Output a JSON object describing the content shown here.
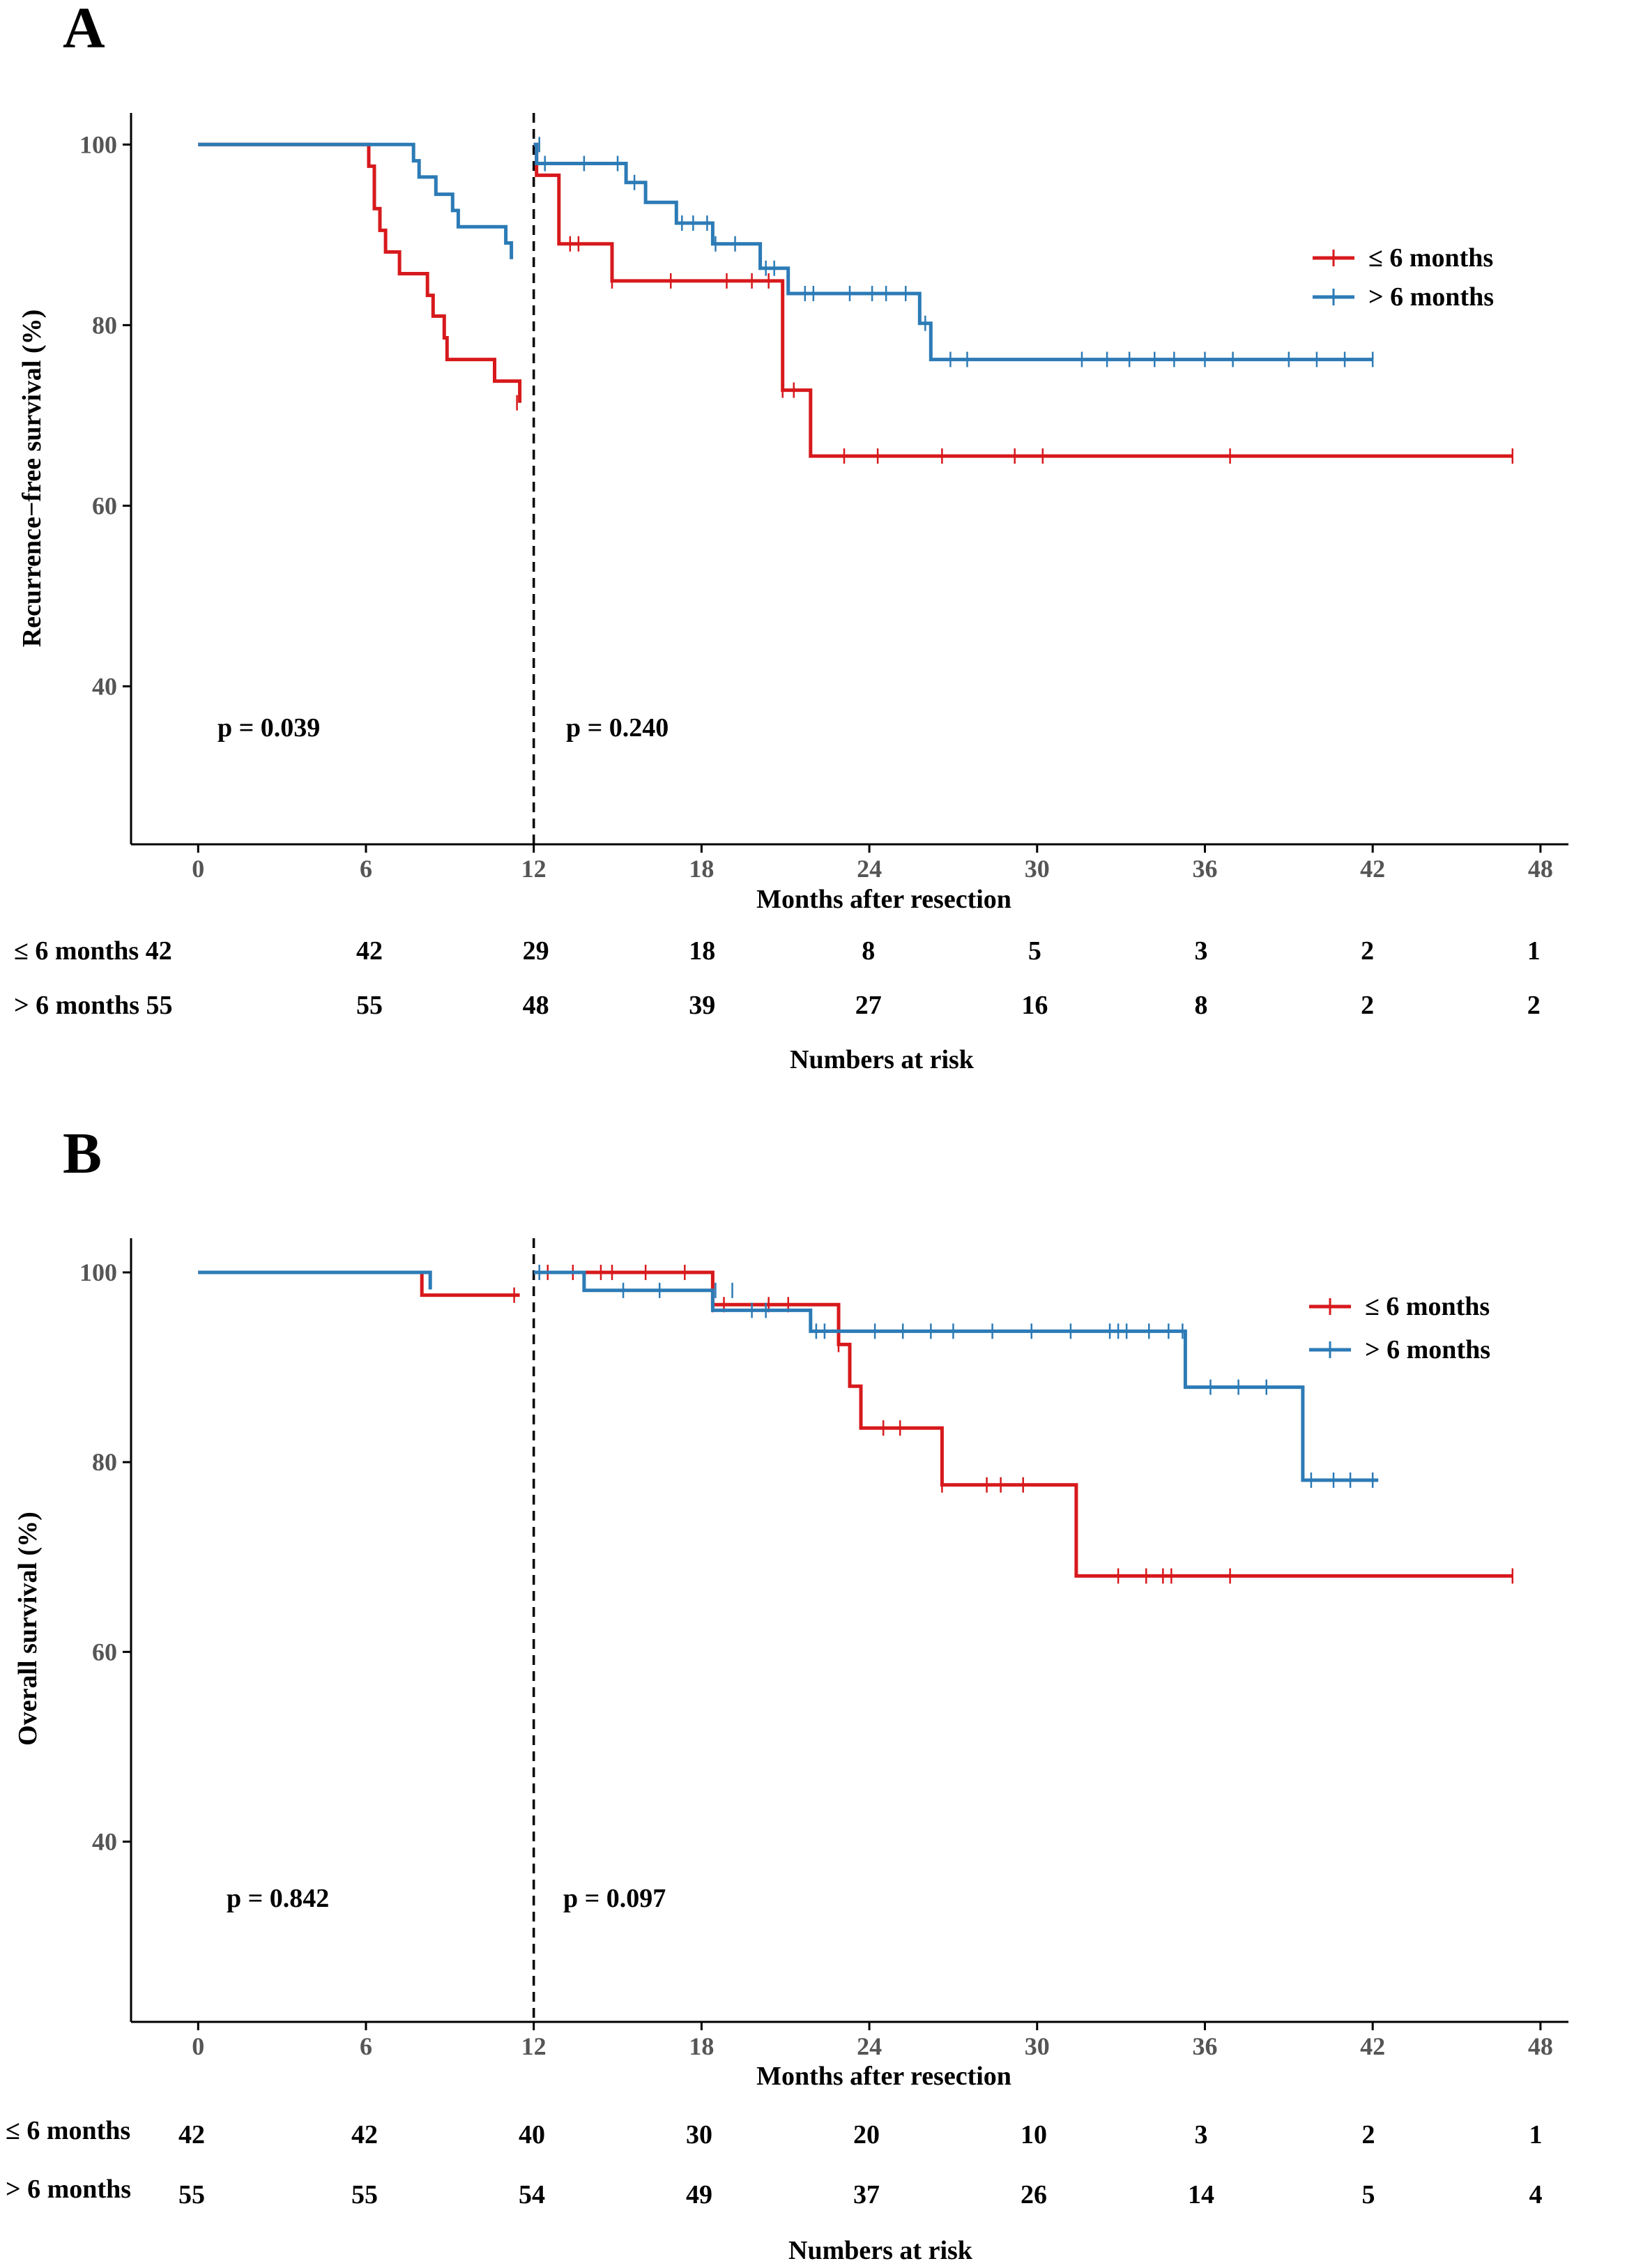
{
  "colors": {
    "le6": "#D7191C",
    "gt6": "#2C7BB6",
    "axis": "#000000"
  },
  "chart_data": [
    {
      "type": "line",
      "panel": "A",
      "xlabel": "Months after resection",
      "ylabel": "Recurrence−free survival (%)",
      "xticks": [
        0,
        6,
        12,
        18,
        24,
        30,
        36,
        42,
        48
      ],
      "yticks": [
        40,
        60,
        80,
        100
      ],
      "xlim": [
        -2.4,
        49
      ],
      "ylim": [
        22.5,
        103.5
      ],
      "landmark_x": 12,
      "p_values": [
        "p = 0.039",
        "p = 0.240"
      ],
      "series": [
        {
          "name": "≤ 6 months",
          "color_key": "le6",
          "segments": [
            [
              [
                0,
                100
              ],
              [
                6.1,
                100
              ],
              [
                6.1,
                97.6
              ],
              [
                6.3,
                97.6
              ],
              [
                6.3,
                92.9
              ],
              [
                6.5,
                92.9
              ],
              [
                6.5,
                90.5
              ],
              [
                6.7,
                90.5
              ],
              [
                6.7,
                88.1
              ],
              [
                7.2,
                88.1
              ],
              [
                7.2,
                85.7
              ],
              [
                8.2,
                85.7
              ],
              [
                8.2,
                83.3
              ],
              [
                8.4,
                83.3
              ],
              [
                8.4,
                81.0
              ],
              [
                8.8,
                81.0
              ],
              [
                8.8,
                78.6
              ],
              [
                8.9,
                78.6
              ],
              [
                8.9,
                76.2
              ],
              [
                10.6,
                76.2
              ],
              [
                10.6,
                73.8
              ],
              [
                11.5,
                73.8
              ],
              [
                11.5,
                71.4
              ]
            ],
            [
              [
                12,
                100
              ],
              [
                12.1,
                100
              ],
              [
                12.1,
                96.6
              ],
              [
                12.9,
                96.6
              ],
              [
                12.9,
                89.0
              ],
              [
                14.8,
                89.0
              ],
              [
                14.8,
                84.9
              ],
              [
                20.9,
                84.9
              ],
              [
                20.9,
                72.8
              ],
              [
                21.9,
                72.8
              ],
              [
                21.9,
                65.5
              ],
              [
                47,
                65.5
              ]
            ]
          ],
          "censor": [
            [
              11.4,
              71.4
            ],
            [
              13.3,
              89.0
            ],
            [
              13.6,
              89.0
            ],
            [
              14.8,
              84.9
            ],
            [
              16.9,
              84.9
            ],
            [
              18.9,
              84.9
            ],
            [
              19.8,
              84.9
            ],
            [
              20.4,
              84.9
            ],
            [
              20.9,
              72.8
            ],
            [
              21.3,
              72.8
            ],
            [
              23.1,
              65.5
            ],
            [
              24.3,
              65.5
            ],
            [
              26.6,
              65.5
            ],
            [
              29.2,
              65.5
            ],
            [
              30.2,
              65.5
            ],
            [
              36.9,
              65.5
            ],
            [
              47,
              65.5
            ]
          ]
        },
        {
          "name": "> 6 months",
          "color_key": "gt6",
          "segments": [
            [
              [
                0,
                100
              ],
              [
                7.7,
                100
              ],
              [
                7.7,
                98.2
              ],
              [
                7.9,
                98.2
              ],
              [
                7.9,
                96.4
              ],
              [
                8.5,
                96.4
              ],
              [
                8.5,
                94.5
              ],
              [
                9.1,
                94.5
              ],
              [
                9.1,
                92.7
              ],
              [
                9.3,
                92.7
              ],
              [
                9.3,
                90.9
              ],
              [
                11.0,
                90.9
              ],
              [
                11.0,
                89.1
              ],
              [
                11.2,
                89.1
              ],
              [
                11.2,
                87.3
              ]
            ],
            [
              [
                12,
                100
              ],
              [
                12.1,
                100
              ],
              [
                12.1,
                97.9
              ],
              [
                15.3,
                97.9
              ],
              [
                15.3,
                95.8
              ],
              [
                16.0,
                95.8
              ],
              [
                16.0,
                93.6
              ],
              [
                17.1,
                93.6
              ],
              [
                17.1,
                91.3
              ],
              [
                18.4,
                91.3
              ],
              [
                18.4,
                89.0
              ],
              [
                20.1,
                89.0
              ],
              [
                20.1,
                86.3
              ],
              [
                21.1,
                86.3
              ],
              [
                21.1,
                83.5
              ],
              [
                25.8,
                83.5
              ],
              [
                25.8,
                80.2
              ],
              [
                26.2,
                80.2
              ],
              [
                26.2,
                76.2
              ],
              [
                42,
                76.2
              ]
            ]
          ],
          "censor": [
            [
              12.2,
              100
            ],
            [
              12.4,
              97.9
            ],
            [
              13.8,
              97.9
            ],
            [
              15.0,
              97.9
            ],
            [
              15.6,
              95.8
            ],
            [
              17.3,
              91.3
            ],
            [
              17.7,
              91.3
            ],
            [
              18.2,
              91.3
            ],
            [
              18.5,
              89.0
            ],
            [
              19.2,
              89.0
            ],
            [
              20.3,
              86.3
            ],
            [
              20.6,
              86.3
            ],
            [
              21.7,
              83.5
            ],
            [
              22.0,
              83.5
            ],
            [
              23.3,
              83.5
            ],
            [
              24.1,
              83.5
            ],
            [
              24.6,
              83.5
            ],
            [
              25.3,
              83.5
            ],
            [
              26.0,
              80.2
            ],
            [
              26.9,
              76.2
            ],
            [
              27.5,
              76.2
            ],
            [
              31.6,
              76.2
            ],
            [
              32.5,
              76.2
            ],
            [
              33.3,
              76.2
            ],
            [
              34.2,
              76.2
            ],
            [
              34.9,
              76.2
            ],
            [
              36.0,
              76.2
            ],
            [
              37.0,
              76.2
            ],
            [
              39.0,
              76.2
            ],
            [
              40.0,
              76.2
            ],
            [
              41.0,
              76.2
            ],
            [
              42,
              76.2
            ]
          ]
        }
      ],
      "risk_table": {
        "title": "Numbers at risk",
        "rows": [
          {
            "label": "≤ 6 months 42",
            "values": [
              "42",
              "29",
              "18",
              "8",
              "5",
              "3",
              "2",
              "1"
            ]
          },
          {
            "label": "> 6 months 55",
            "values": [
              "55",
              "48",
              "39",
              "27",
              "16",
              "8",
              "2",
              "2"
            ]
          }
        ]
      }
    },
    {
      "type": "line",
      "panel": "B",
      "xlabel": "Months after resection",
      "ylabel": "Overall survival (%)",
      "xticks": [
        0,
        6,
        12,
        18,
        24,
        30,
        36,
        42,
        48
      ],
      "yticks": [
        40,
        60,
        80,
        100
      ],
      "xlim": [
        -2.4,
        49
      ],
      "ylim": [
        21,
        103.6
      ],
      "landmark_x": 12,
      "p_values": [
        "p = 0.842",
        "p = 0.097"
      ],
      "series": [
        {
          "name": "≤ 6 months",
          "color_key": "le6",
          "segments": [
            [
              [
                0,
                100
              ],
              [
                8.0,
                100
              ],
              [
                8.0,
                97.6
              ],
              [
                11.5,
                97.6
              ]
            ],
            [
              [
                12,
                100
              ],
              [
                18.4,
                100
              ],
              [
                18.4,
                96.6
              ],
              [
                22.9,
                96.6
              ],
              [
                22.9,
                92.4
              ],
              [
                23.3,
                92.4
              ],
              [
                23.3,
                88.0
              ],
              [
                23.7,
                88.0
              ],
              [
                23.7,
                83.6
              ],
              [
                26.6,
                83.6
              ],
              [
                26.6,
                77.6
              ],
              [
                31.4,
                77.6
              ],
              [
                31.4,
                68.0
              ],
              [
                47,
                68.0
              ]
            ]
          ],
          "censor": [
            [
              11.3,
              97.6
            ],
            [
              12.2,
              100
            ],
            [
              12.5,
              100
            ],
            [
              13.4,
              100
            ],
            [
              14.4,
              100
            ],
            [
              14.8,
              100
            ],
            [
              16.0,
              100
            ],
            [
              17.4,
              100
            ],
            [
              18.4,
              96.6
            ],
            [
              18.8,
              96.6
            ],
            [
              20.4,
              96.6
            ],
            [
              21.1,
              96.6
            ],
            [
              22.9,
              92.4
            ],
            [
              24.5,
              83.6
            ],
            [
              25.1,
              83.6
            ],
            [
              26.6,
              77.6
            ],
            [
              28.2,
              77.6
            ],
            [
              28.7,
              77.6
            ],
            [
              29.5,
              77.6
            ],
            [
              32.9,
              68.0
            ],
            [
              33.9,
              68.0
            ],
            [
              34.5,
              68.0
            ],
            [
              34.8,
              68.0
            ],
            [
              36.9,
              68.0
            ],
            [
              47,
              68.0
            ]
          ]
        },
        {
          "name": "> 6 months",
          "color_key": "gt6",
          "segments": [
            [
              [
                0,
                100
              ],
              [
                8.3,
                100
              ],
              [
                8.3,
                98.2
              ]
            ],
            [
              [
                12,
                100
              ],
              [
                13.8,
                100
              ],
              [
                13.8,
                98.1
              ],
              [
                18.4,
                98.1
              ],
              [
                18.4,
                96.0
              ],
              [
                21.9,
                96.0
              ],
              [
                21.9,
                93.8
              ],
              [
                35.3,
                93.8
              ],
              [
                35.3,
                87.9
              ],
              [
                39.5,
                87.9
              ],
              [
                39.5,
                78.1
              ],
              [
                42.2,
                78.1
              ]
            ]
          ],
          "censor": [
            [
              12.2,
              100
            ],
            [
              15.2,
              98.1
            ],
            [
              16.5,
              98.1
            ],
            [
              18.5,
              98.1
            ],
            [
              19.1,
              98.1
            ],
            [
              19.8,
              96.0
            ],
            [
              20.3,
              96.0
            ],
            [
              22.1,
              93.8
            ],
            [
              22.4,
              93.8
            ],
            [
              24.2,
              93.8
            ],
            [
              25.2,
              93.8
            ],
            [
              26.2,
              93.8
            ],
            [
              27.0,
              93.8
            ],
            [
              28.4,
              93.8
            ],
            [
              29.8,
              93.8
            ],
            [
              31.2,
              93.8
            ],
            [
              32.6,
              93.8
            ],
            [
              32.9,
              93.8
            ],
            [
              33.2,
              93.8
            ],
            [
              34.0,
              93.8
            ],
            [
              34.7,
              93.8
            ],
            [
              35.2,
              93.8
            ],
            [
              36.2,
              87.9
            ],
            [
              37.2,
              87.9
            ],
            [
              38.2,
              87.9
            ],
            [
              39.8,
              78.1
            ],
            [
              40.6,
              78.1
            ],
            [
              41.2,
              78.1
            ],
            [
              42.0,
              78.1
            ]
          ]
        }
      ],
      "risk_table": {
        "title": "Numbers at risk",
        "rows": [
          {
            "label": "≤ 6 months",
            "label_suffix": "42",
            "values": [
              "42",
              "40",
              "30",
              "20",
              "10",
              "3",
              "2",
              "1"
            ]
          },
          {
            "label": "> 6 months",
            "label_suffix": "55",
            "values": [
              "55",
              "54",
              "49",
              "37",
              "26",
              "14",
              "5",
              "4"
            ]
          }
        ]
      }
    }
  ]
}
